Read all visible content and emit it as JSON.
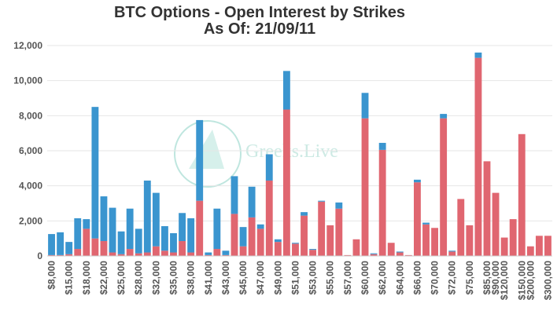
{
  "chart_data": {
    "type": "stacked_bar",
    "title": "BTC Options - Open Interest by Strikes",
    "subtitle": "As Of: 21/09/11",
    "watermark": "Greeks.Live",
    "categories": [
      "$8,000",
      null,
      "$15,000",
      null,
      "$18,000",
      null,
      "$22,000",
      null,
      "$25,000",
      null,
      "$28,000",
      null,
      "$32,000",
      null,
      "$35,000",
      null,
      "$38,000",
      null,
      "$41,000",
      null,
      "$43,000",
      null,
      "$45,000",
      null,
      "$47,000",
      null,
      "$49,000",
      null,
      "$51,000",
      null,
      "$53,000",
      null,
      "$55,000",
      null,
      "$57,000",
      null,
      "$60,000",
      null,
      "$62,000",
      null,
      "$64,000",
      null,
      "$66,000",
      null,
      "$70,000",
      null,
      "$72,000",
      null,
      "$75,000",
      null,
      "$85,000",
      "$90,000",
      "$120,000",
      null,
      "$150,000",
      "$200,000",
      null,
      "$300,000"
    ],
    "series": [
      {
        "color": "#e06670",
        "values": [
          50,
          50,
          100,
          400,
          1550,
          1000,
          850,
          200,
          100,
          400,
          150,
          200,
          550,
          300,
          200,
          850,
          200,
          3150,
          50,
          400,
          50,
          2400,
          550,
          2200,
          1550,
          4300,
          800,
          8350,
          700,
          2300,
          350,
          3100,
          1750,
          2700,
          50,
          950,
          7850,
          100,
          6050,
          750,
          200,
          50,
          4200,
          1800,
          1600,
          7850,
          250,
          3250,
          1750,
          11300,
          5400,
          3600,
          1050,
          2100,
          6950,
          550,
          1150,
          1150
        ]
      },
      {
        "color": "#3a95cf",
        "values": [
          1200,
          1300,
          700,
          1750,
          550,
          7500,
          2550,
          2550,
          1300,
          2300,
          1400,
          4100,
          3050,
          1400,
          1100,
          1600,
          1950,
          4600,
          150,
          2300,
          250,
          2150,
          1100,
          1750,
          250,
          1500,
          150,
          2200,
          50,
          200,
          50,
          50,
          0,
          350,
          0,
          0,
          1450,
          50,
          400,
          0,
          50,
          0,
          150,
          100,
          0,
          250,
          50,
          0,
          0,
          300,
          0,
          0,
          0,
          0,
          0,
          0,
          0,
          0
        ]
      }
    ],
    "ylim": [
      0,
      12000
    ],
    "yticks": [
      0,
      {
        "value": 2000,
        "label": "2,000"
      },
      {
        "value": 4000,
        "label": "4,000"
      },
      {
        "value": 6000,
        "label": "6,000"
      },
      {
        "value": 8000,
        "label": "8,000"
      },
      {
        "value": 10000,
        "label": "10,000"
      },
      {
        "value": 12000,
        "label": "12,000"
      }
    ],
    "grid": true
  }
}
